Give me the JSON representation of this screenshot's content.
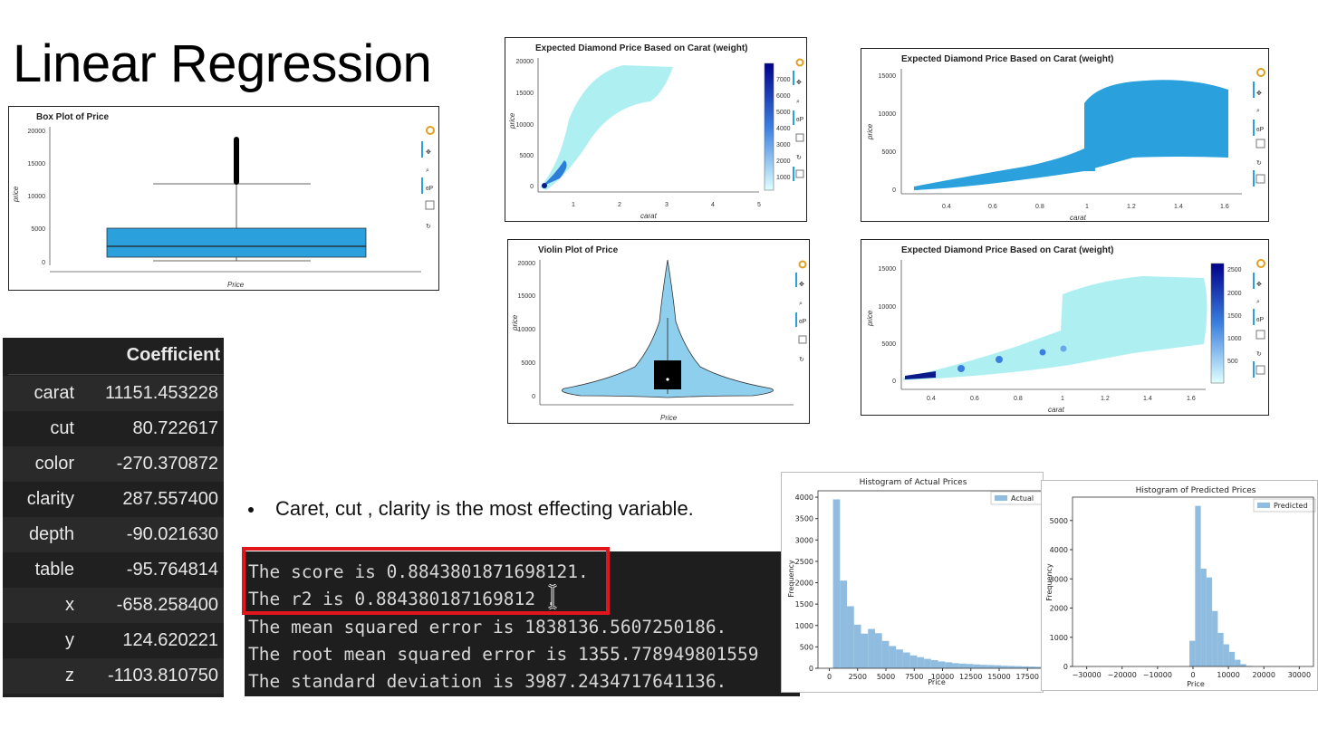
{
  "slide": {
    "title": "Linear Regression"
  },
  "box_plot": {
    "title": "Box Plot of Price",
    "ylabel": "price",
    "xlabel": "Price",
    "yticks": [
      "20000",
      "15000",
      "10000",
      "5000",
      "0"
    ]
  },
  "hex_top": {
    "title": "Expected Diamond Price Based on Carat (weight)",
    "xlabel": "carat",
    "ylabel": "price",
    "yticks": [
      "20000",
      "15000",
      "10000",
      "5000",
      "0"
    ],
    "xticks": [
      "1",
      "2",
      "3",
      "4",
      "5"
    ],
    "colorbar": [
      "7000",
      "6000",
      "5000",
      "4000",
      "3000",
      "2000",
      "1000"
    ]
  },
  "scatter": {
    "title": "Expected Diamond Price Based on Carat (weight)",
    "xlabel": "carat",
    "ylabel": "price",
    "yticks": [
      "15000",
      "10000",
      "5000",
      "0"
    ],
    "xticks": [
      "0.4",
      "0.6",
      "0.8",
      "1",
      "1.2",
      "1.4",
      "1.6"
    ]
  },
  "violin": {
    "title": "Violin Plot of Price",
    "xlabel": "Price",
    "ylabel": "price",
    "yticks": [
      "20000",
      "15000",
      "10000",
      "5000",
      "0"
    ]
  },
  "hex_bottom": {
    "title": "Expected Diamond Price Based on Carat (weight)",
    "xlabel": "carat",
    "ylabel": "price",
    "yticks": [
      "15000",
      "10000",
      "5000",
      "0"
    ],
    "xticks": [
      "0.4",
      "0.6",
      "0.8",
      "1",
      "1.2",
      "1.4",
      "1.6"
    ],
    "colorbar": [
      "2500",
      "2000",
      "1500",
      "1000",
      "500"
    ]
  },
  "coefficients": {
    "header": "Coefficient",
    "rows": [
      {
        "name": "carat",
        "value": "11151.453228"
      },
      {
        "name": "cut",
        "value": "80.722617"
      },
      {
        "name": "color",
        "value": "-270.370872"
      },
      {
        "name": "clarity",
        "value": "287.557400"
      },
      {
        "name": "depth",
        "value": "-90.021630"
      },
      {
        "name": "table",
        "value": "-95.764814"
      },
      {
        "name": "x",
        "value": "-658.258400"
      },
      {
        "name": "y",
        "value": "124.620221"
      },
      {
        "name": "z",
        "value": "-1103.810750"
      }
    ]
  },
  "bullet": {
    "text": "Caret, cut , clarity is the most effecting variable."
  },
  "terminal": {
    "lines": [
      "The score is 0.8843801871698121.",
      "The r2 is 0.884380187169812 .",
      "The mean squared error is 1838136.5607250186.",
      "The root mean squared error is 1355.778949801559",
      "The standard deviation is 3987.2434717641136."
    ]
  },
  "hist_actual": {
    "title": "Histogram of Actual Prices",
    "legend": "Actual",
    "xlabel": "Price",
    "ylabel": "Frequency",
    "yticks": [
      "0",
      "500",
      "1000",
      "1500",
      "2000",
      "2500",
      "3000",
      "3500",
      "4000"
    ],
    "xticks": [
      "0",
      "2500",
      "5000",
      "7500",
      "10000",
      "12500",
      "15000",
      "17500"
    ]
  },
  "hist_pred": {
    "title": "Histogram of Predicted Prices",
    "legend": "Predicted",
    "xlabel": "Price",
    "ylabel": "Frequency",
    "yticks": [
      "0",
      "1000",
      "2000",
      "3000",
      "4000",
      "5000"
    ],
    "xticks": [
      "−30000",
      "−20000",
      "−10000",
      "0",
      "10000",
      "20000",
      "30000"
    ]
  },
  "chart_data": [
    {
      "type": "bar",
      "title": "Histogram of Actual Prices",
      "xlabel": "Price",
      "ylabel": "Frequency",
      "legend": "Actual",
      "bin_edges_start": 326,
      "bin_width": 618.5,
      "values": [
        3950,
        2050,
        1450,
        1020,
        810,
        920,
        820,
        640,
        520,
        440,
        370,
        300,
        260,
        220,
        190,
        160,
        140,
        120,
        110,
        100,
        90,
        80,
        75,
        70,
        60,
        55,
        50,
        45,
        40,
        35
      ],
      "xlim": [
        -1000,
        19000
      ],
      "ylim": [
        0,
        4150
      ]
    },
    {
      "type": "bar",
      "title": "Histogram of Predicted Prices",
      "xlabel": "Price",
      "ylabel": "Frequency",
      "legend": "Predicted",
      "bin_edges_start": -1000,
      "bin_width": 1600,
      "values": [
        880,
        5500,
        3350,
        3050,
        1900,
        1150,
        760,
        500,
        230,
        80,
        20
      ],
      "xlim": [
        -34000,
        34000
      ],
      "ylim": [
        0,
        5800
      ]
    }
  ]
}
